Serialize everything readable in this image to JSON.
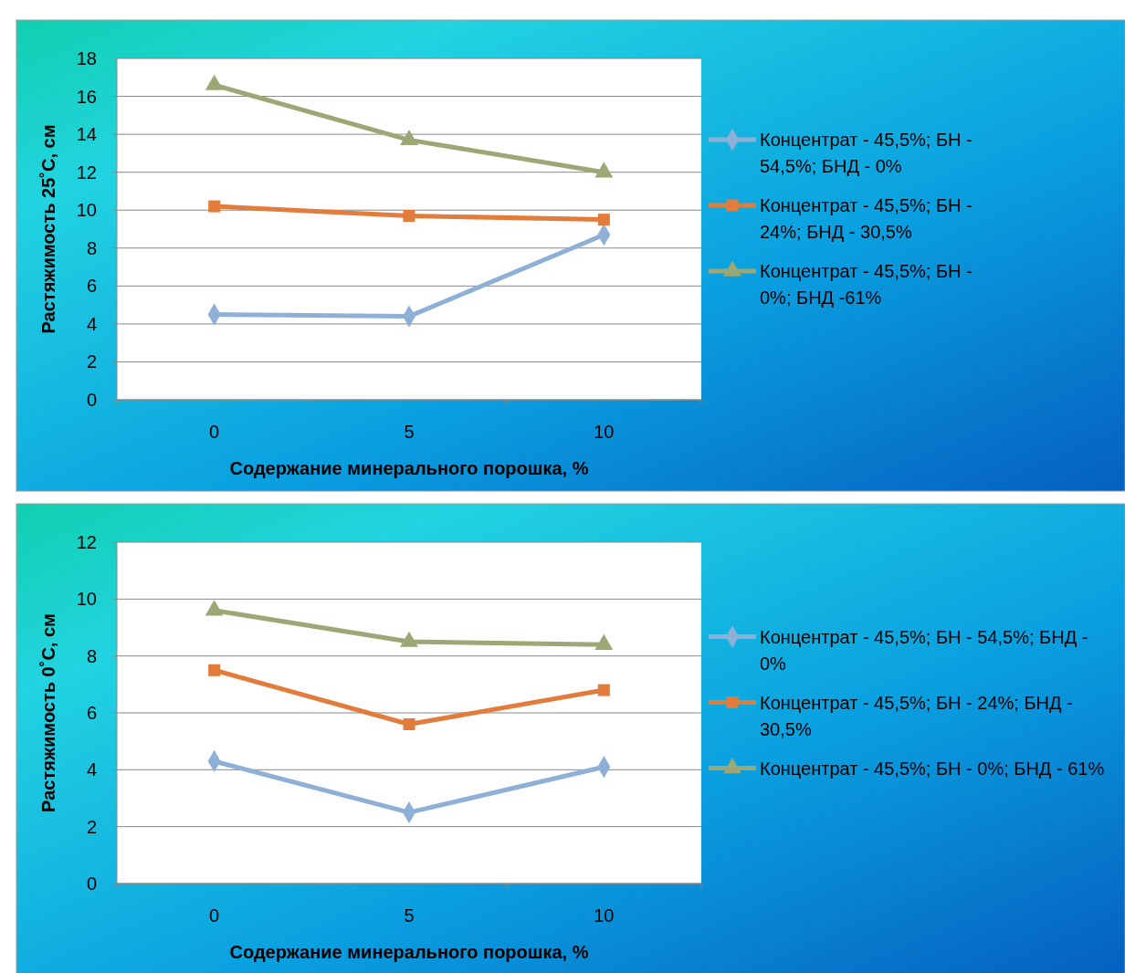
{
  "chart_data": [
    {
      "type": "line",
      "xlabel": "Содержание минерального порошка, %",
      "ylabel": "Растяжимость 25˚С, см",
      "categories": [
        "0",
        "5",
        "10"
      ],
      "ylim": [
        0,
        18
      ],
      "yticks": [
        0,
        2,
        4,
        6,
        8,
        10,
        12,
        14,
        16,
        18
      ],
      "grid": "y",
      "legend": "right",
      "series": [
        {
          "name": "Концентрат - 45,5%; БН - 54,5%; БНД - 0%",
          "color": "#8fb0d6",
          "marker": "diamond",
          "values": [
            4.5,
            4.4,
            8.7
          ]
        },
        {
          "name": "Концентрат - 45,5%; БН - 24%; БНД - 30,5%",
          "color": "#e27c3c",
          "marker": "square",
          "values": [
            10.2,
            9.7,
            9.5
          ]
        },
        {
          "name": "Концентрат - 45,5%; БН - 0%; БНД -61%",
          "color": "#9ba774",
          "marker": "triangle",
          "values": [
            16.6,
            13.7,
            12.0
          ]
        }
      ]
    },
    {
      "type": "line",
      "xlabel": "Содержание минерального порошка, %",
      "ylabel": "Растяжимость 0˚С, см",
      "categories": [
        "0",
        "5",
        "10"
      ],
      "ylim": [
        0,
        12
      ],
      "yticks": [
        0,
        2,
        4,
        6,
        8,
        10,
        12
      ],
      "grid": "y",
      "legend": "right",
      "series": [
        {
          "name": "Концентрат - 45,5%; БН - 54,5%; БНД - 0%",
          "color": "#8fb0d6",
          "marker": "diamond",
          "values": [
            4.3,
            2.5,
            4.1
          ]
        },
        {
          "name": "Концентрат - 45,5%; БН - 24%; БНД - 30,5%",
          "color": "#e27c3c",
          "marker": "square",
          "values": [
            7.5,
            5.6,
            6.8
          ]
        },
        {
          "name": "Концентрат - 45,5%; БН - 0%; БНД - 61%",
          "color": "#9ba774",
          "marker": "triangle",
          "values": [
            9.6,
            8.5,
            8.4
          ]
        }
      ]
    }
  ]
}
